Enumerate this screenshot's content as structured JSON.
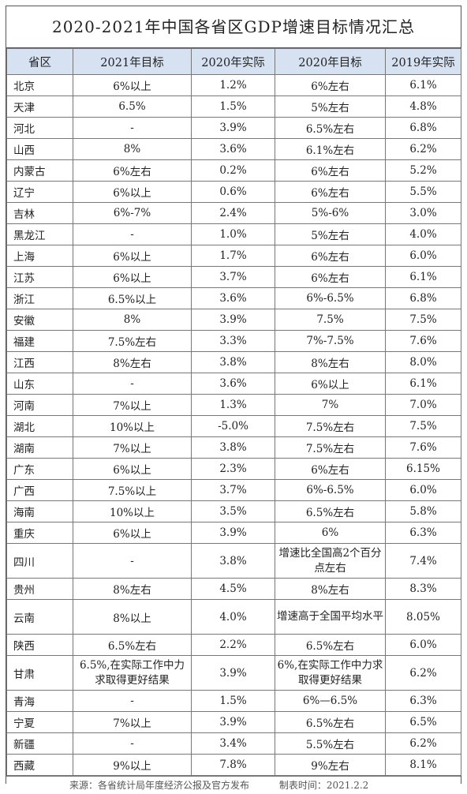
{
  "title": "2020-2021年中国各省区GDP增速目标情况汇总",
  "headers": [
    "省区",
    "2021年目标",
    "2020年实际",
    "2020年目标",
    "2019年实际"
  ],
  "rows": [
    [
      "北京",
      "6%以上",
      "1.2%",
      "6%左右",
      "6.1%"
    ],
    [
      "天津",
      "6.5%",
      "1.5%",
      "5%左右",
      "4.8%"
    ],
    [
      "河北",
      "-",
      "3.9%",
      "6.5%左右",
      "6.8%"
    ],
    [
      "山西",
      "8%",
      "3.6%",
      "6.1%左右",
      "6.2%"
    ],
    [
      "内蒙古",
      "6%左右",
      "0.2%",
      "6%左右",
      "5.2%"
    ],
    [
      "辽宁",
      "6%以上",
      "0.6%",
      "6%左右",
      "5.5%"
    ],
    [
      "吉林",
      "6%-7%",
      "2.4%",
      "5%-6%",
      "3.0%"
    ],
    [
      "黑龙江",
      "-",
      "1.0%",
      "5%左右",
      "4.0%"
    ],
    [
      "上海",
      "6%以上",
      "1.7%",
      "6%左右",
      "6.0%"
    ],
    [
      "江苏",
      "6%以上",
      "3.7%",
      "6%左右",
      "6.1%"
    ],
    [
      "浙江",
      "6.5%以上",
      "3.6%",
      "6%-6.5%",
      "6.8%"
    ],
    [
      "安徽",
      "8%",
      "3.9%",
      "7.5%",
      "7.5%"
    ],
    [
      "福建",
      "7.5%左右",
      "3.3%",
      "7%-7.5%",
      "7.6%"
    ],
    [
      "江西",
      "8%左右",
      "3.8%",
      "8%左右",
      "8.0%"
    ],
    [
      "山东",
      "-",
      "3.6%",
      "6%以上",
      "6.1%"
    ],
    [
      "河南",
      "7%以上",
      "1.3%",
      "7%",
      "7.0%"
    ],
    [
      "湖北",
      "10%以上",
      "-5.0%",
      "7.5%左右",
      "7.5%"
    ],
    [
      "湖南",
      "7%以上",
      "3.8%",
      "7.5%左右",
      "7.6%"
    ],
    [
      "广东",
      "6%以上",
      "2.3%",
      "6%左右",
      "6.15%"
    ],
    [
      "广西",
      "7.5%以上",
      "3.7%",
      "6%-6.5%",
      "6.0%"
    ],
    [
      "海南",
      "10%以上",
      "3.5%",
      "6.5%左右",
      "5.8%"
    ],
    [
      "重庆",
      "6%以上",
      "3.9%",
      "6%",
      "6.3%"
    ],
    [
      "四川",
      "-",
      "3.8%",
      "增速比全国高2个百分点左右",
      "7.4%"
    ],
    [
      "贵州",
      "8%左右",
      "4.5%",
      "8%左右",
      "8.3%"
    ],
    [
      "云南",
      "8%以上",
      "4.0%",
      "增速高于全国平均水平",
      "8.05%"
    ],
    [
      "陕西",
      "6.5%左右",
      "2.2%",
      "6.5%左右",
      "6.0%"
    ],
    [
      "甘肃",
      "6.5%,在实际工作中力求取得更好结果",
      "3.9%",
      "6%,在实际工作中力求取得更好结果",
      "6.2%"
    ],
    [
      "青海",
      "-",
      "1.5%",
      "6%—6.5%",
      "6.3%"
    ],
    [
      "宁夏",
      "7%以上",
      "3.9%",
      "6.5%左右",
      "6.5%"
    ],
    [
      "新疆",
      "-",
      "3.4%",
      "5.5%左右",
      "6.2%"
    ],
    [
      "西藏",
      "9%以上",
      "7.8%",
      "9%左右",
      "8.1%"
    ]
  ],
  "footer": {
    "source": "来源：各省统计局年度经济公报及官方发布",
    "date": "制表时间：2021.2.2"
  }
}
